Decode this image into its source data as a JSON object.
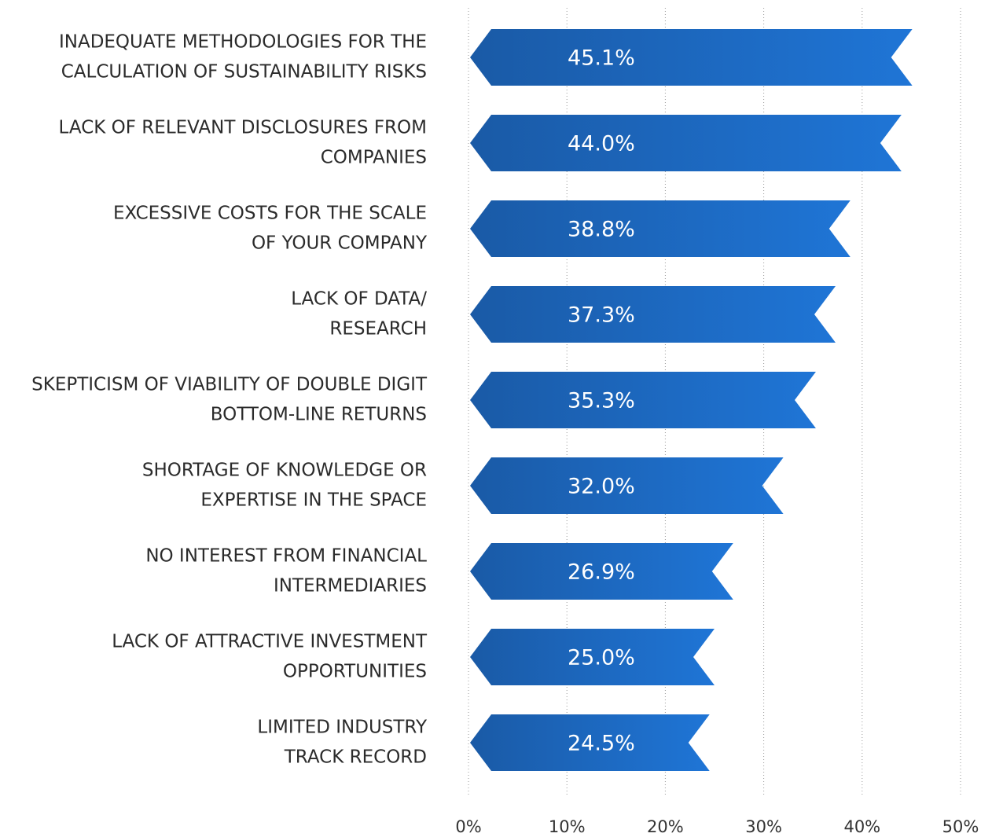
{
  "chart_data": {
    "type": "bar",
    "orientation": "horizontal",
    "categories": [
      [
        "INADEQUATE METHODOLOGIES FOR THE",
        "CALCULATION OF SUSTAINABILITY RISKS"
      ],
      [
        "LACK OF RELEVANT DISCLOSURES FROM",
        "COMPANIES"
      ],
      [
        "EXCESSIVE COSTS FOR THE SCALE",
        "OF YOUR COMPANY"
      ],
      [
        "LACK OF DATA/",
        "RESEARCH"
      ],
      [
        "SKEPTICISM OF VIABILITY OF DOUBLE DIGIT",
        "BOTTOM-LINE RETURNS"
      ],
      [
        "SHORTAGE OF KNOWLEDGE OR",
        "EXPERTISE IN THE SPACE"
      ],
      [
        "NO INTEREST FROM FINANCIAL",
        "INTERMEDIARIES"
      ],
      [
        "LACK OF ATTRACTIVE INVESTMENT",
        "OPPORTUNITIES"
      ],
      [
        "LIMITED INDUSTRY",
        "TRACK RECORD"
      ]
    ],
    "values": [
      45.1,
      44.0,
      38.8,
      37.3,
      35.3,
      32.0,
      26.9,
      25.0,
      24.5
    ],
    "value_labels": [
      "45.1%",
      "44.0%",
      "38.8%",
      "37.3%",
      "35.3%",
      "32.0%",
      "26.9%",
      "25.0%",
      "24.5%"
    ],
    "color": [
      "#1a5aa6",
      "#1f75d6"
    ],
    "xlim": [
      0,
      50
    ],
    "xticks": [
      {
        "value": 0,
        "label": "0%"
      },
      {
        "value": 10,
        "label": "10%"
      },
      {
        "value": 20,
        "label": "20%"
      },
      {
        "value": 30,
        "label": "30%"
      },
      {
        "value": 40,
        "label": "40%"
      },
      {
        "value": 50,
        "label": "50%"
      }
    ],
    "grid": true
  }
}
